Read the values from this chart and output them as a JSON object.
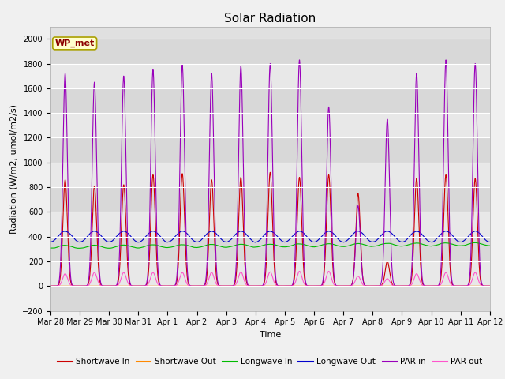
{
  "title": "Solar Radiation",
  "ylabel": "Radiation (W/m2, umol/m2/s)",
  "xlabel": "Time",
  "ylim": [
    -200,
    2100
  ],
  "yticks": [
    -200,
    0,
    200,
    400,
    600,
    800,
    1000,
    1200,
    1400,
    1600,
    1800,
    2000
  ],
  "fig_bg_color": "#f0f0f0",
  "plot_bg_color": "#e0e0e0",
  "legend_labels": [
    "Shortwave In",
    "Shortwave Out",
    "Longwave In",
    "Longwave Out",
    "PAR in",
    "PAR out"
  ],
  "legend_colors": [
    "#cc0000",
    "#ff8800",
    "#00bb00",
    "#0000cc",
    "#9900bb",
    "#ff55cc"
  ],
  "annotation_text": "WP_met",
  "annotation_color": "#8b0000",
  "annotation_bg": "#ffffcc",
  "xtick_labels": [
    "Mar 28",
    "Mar 29",
    "Mar 30",
    "Mar 31",
    "Apr 1",
    "Apr 2",
    "Apr 3",
    "Apr 4",
    "Apr 5",
    "Apr 6",
    "Apr 7",
    "Apr 8",
    "Apr 9",
    "Apr 10",
    "Apr 11",
    "Apr 12"
  ],
  "n_days": 15,
  "pts_per_day": 288,
  "title_fontsize": 11,
  "axis_fontsize": 8,
  "tick_fontsize": 7
}
